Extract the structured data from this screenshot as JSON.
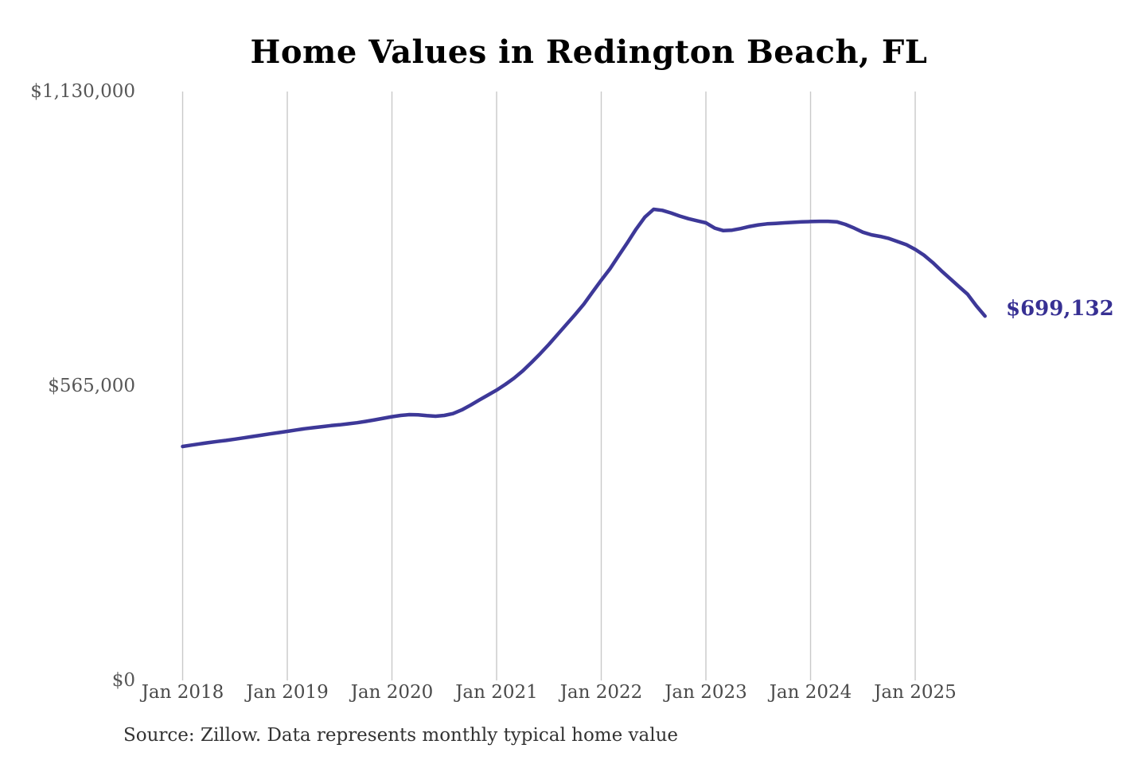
{
  "header": {
    "title": "Home Values in Redington Beach, FL"
  },
  "footer": {
    "source": "Source: Zillow. Data represents monthly typical home value"
  },
  "colors": {
    "background": "#ffffff",
    "line": "#3d3898",
    "grid": "#c9c9c9",
    "y_tick_label": "#575757",
    "x_tick_label": "#4a4a4a",
    "end_label": "#373093",
    "title": "#000000",
    "source": "#333333"
  },
  "chart_data": {
    "type": "line",
    "title": "Home Values in Redington Beach, FL",
    "xlabel": "",
    "ylabel": "",
    "x_start": "Jan 2018",
    "x_end": "Sep 2025",
    "x_interval": "monthly",
    "x_tick_labels": [
      "Jan 2018",
      "Jan 2019",
      "Jan 2020",
      "Jan 2021",
      "Jan 2022",
      "Jan 2023",
      "Jan 2024",
      "Jan 2025"
    ],
    "y_ticks": [
      {
        "label": "$0",
        "value": 0
      },
      {
        "label": "$565,000",
        "value": 565000
      },
      {
        "label": "$1,130,000",
        "value": 1130000
      }
    ],
    "ylim": [
      0,
      1130000
    ],
    "grid": "vertical-only",
    "legend": "none",
    "end_label": "$699,132",
    "last_value": 699132,
    "series": [
      {
        "name": "Monthly typical home value",
        "color": "#3d3898",
        "values": [
          449000,
          451500,
          454000,
          456500,
          458500,
          460500,
          463000,
          465500,
          468000,
          470500,
          473000,
          475500,
          478000,
          480500,
          483000,
          485000,
          487000,
          489000,
          490500,
          492500,
          494500,
          497000,
          500000,
          503000,
          506000,
          508500,
          510000,
          509500,
          508000,
          507000,
          508500,
          512000,
          519000,
          528000,
          538000,
          547500,
          557000,
          568000,
          580000,
          594000,
          610000,
          627000,
          645000,
          664000,
          683000,
          702000,
          722000,
          745000,
          768000,
          790000,
          815000,
          840000,
          866000,
          889000,
          904000,
          902000,
          897000,
          891000,
          886000,
          882000,
          878000,
          868000,
          863000,
          864000,
          867000,
          871000,
          874000,
          876000,
          877000,
          878000,
          879000,
          880000,
          880500,
          881000,
          881000,
          880000,
          875000,
          868000,
          860000,
          855000,
          852000,
          848000,
          842000,
          836000,
          827000,
          816000,
          802000,
          786000,
          771000,
          756000,
          741000,
          719000,
          699132
        ]
      }
    ]
  }
}
